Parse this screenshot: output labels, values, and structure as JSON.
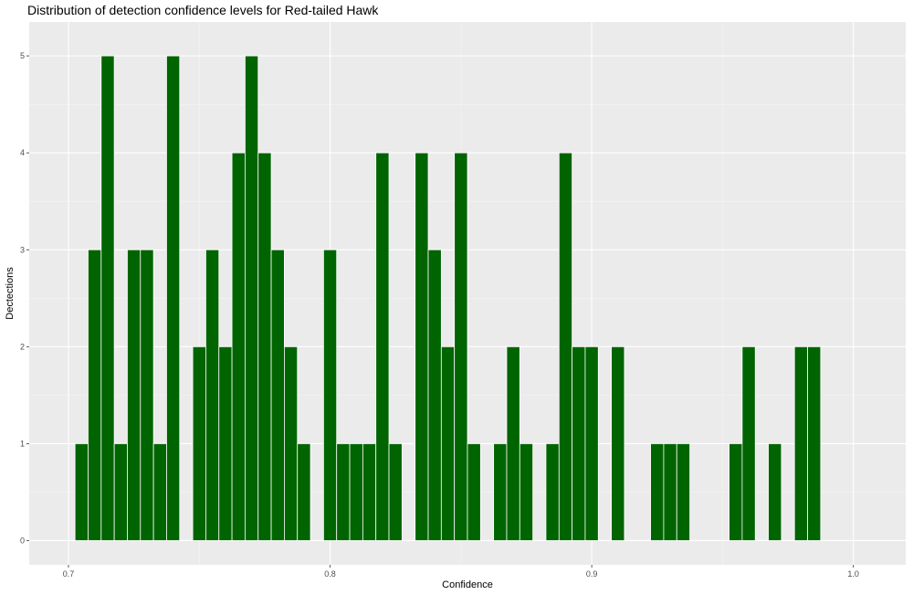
{
  "chart_data": {
    "type": "bar",
    "title": "Distribution of detection confidence levels for Red-tailed Hawk",
    "xlabel": "Confidence",
    "ylabel": "Dectections",
    "xlim": [
      0.685,
      1.02
    ],
    "ylim": [
      -0.25,
      5.35
    ],
    "x_ticks": [
      0.7,
      0.8,
      0.9,
      1.0
    ],
    "x_tick_labels": [
      "0.7",
      "0.8",
      "0.9",
      "1.0"
    ],
    "y_ticks": [
      0,
      1,
      2,
      3,
      4,
      5
    ],
    "y_tick_labels": [
      "0",
      "1",
      "2",
      "3",
      "4",
      "5"
    ],
    "grid": true,
    "bin_width": 0.005,
    "bars": [
      {
        "x": 0.705,
        "value": 1
      },
      {
        "x": 0.71,
        "value": 3
      },
      {
        "x": 0.715,
        "value": 5
      },
      {
        "x": 0.72,
        "value": 1
      },
      {
        "x": 0.725,
        "value": 3
      },
      {
        "x": 0.73,
        "value": 3
      },
      {
        "x": 0.735,
        "value": 1
      },
      {
        "x": 0.74,
        "value": 5
      },
      {
        "x": 0.75,
        "value": 2
      },
      {
        "x": 0.755,
        "value": 3
      },
      {
        "x": 0.76,
        "value": 2
      },
      {
        "x": 0.765,
        "value": 4
      },
      {
        "x": 0.77,
        "value": 5
      },
      {
        "x": 0.775,
        "value": 4
      },
      {
        "x": 0.78,
        "value": 3
      },
      {
        "x": 0.785,
        "value": 2
      },
      {
        "x": 0.79,
        "value": 1
      },
      {
        "x": 0.8,
        "value": 3
      },
      {
        "x": 0.805,
        "value": 1
      },
      {
        "x": 0.81,
        "value": 1
      },
      {
        "x": 0.815,
        "value": 1
      },
      {
        "x": 0.82,
        "value": 4
      },
      {
        "x": 0.825,
        "value": 1
      },
      {
        "x": 0.835,
        "value": 4
      },
      {
        "x": 0.84,
        "value": 3
      },
      {
        "x": 0.845,
        "value": 2
      },
      {
        "x": 0.85,
        "value": 4
      },
      {
        "x": 0.855,
        "value": 1
      },
      {
        "x": 0.865,
        "value": 1
      },
      {
        "x": 0.87,
        "value": 2
      },
      {
        "x": 0.875,
        "value": 1
      },
      {
        "x": 0.885,
        "value": 1
      },
      {
        "x": 0.89,
        "value": 4
      },
      {
        "x": 0.895,
        "value": 2
      },
      {
        "x": 0.9,
        "value": 2
      },
      {
        "x": 0.91,
        "value": 2
      },
      {
        "x": 0.925,
        "value": 1
      },
      {
        "x": 0.93,
        "value": 1
      },
      {
        "x": 0.935,
        "value": 1
      },
      {
        "x": 0.955,
        "value": 1
      },
      {
        "x": 0.96,
        "value": 2
      },
      {
        "x": 0.97,
        "value": 1
      },
      {
        "x": 0.98,
        "value": 2
      },
      {
        "x": 0.985,
        "value": 2
      }
    ],
    "colors": {
      "bar_fill": "#006400",
      "bar_outline": "#ffffff",
      "panel_background": "#ebebeb",
      "grid_major": "#ffffff",
      "grid_minor": "#f5f5f5",
      "tick_text": "#4d4d4d"
    }
  }
}
